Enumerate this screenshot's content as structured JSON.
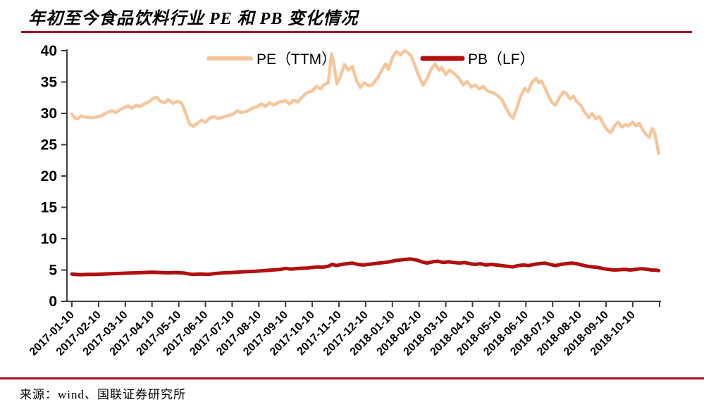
{
  "page": {
    "title": "年初至今食品饮料行业 PE 和 PB 变化情况",
    "source": "来源：wind、国联证券研究所"
  },
  "colors": {
    "accent_rule": "#A80E28",
    "axis": "#3F3F3F",
    "pe_line": "#F6C69B",
    "pb_line": "#B20F0F",
    "text": "#000000"
  },
  "chart_data": {
    "type": "line",
    "title": "年初至今食品饮料行业 PE 和 PB 变化情况",
    "grid": false,
    "legend_position": "top-center",
    "ylim": [
      0,
      40
    ],
    "y_ticks": [
      0,
      5,
      10,
      15,
      20,
      25,
      30,
      35,
      40
    ],
    "x_unit": "months since 2017-01-10",
    "x_range": [
      0,
      22.1
    ],
    "x_tick_labels": [
      "2017-01-10",
      "2017-02-10",
      "2017-03-10",
      "2017-04-10",
      "2017-05-10",
      "2017-06-10",
      "2017-07-10",
      "2017-08-10",
      "2017-09-10",
      "2017-10-10",
      "2017-11-10",
      "2017-12-10",
      "2018-01-10",
      "2018-02-10",
      "2018-03-10",
      "2018-04-10",
      "2018-05-10",
      "2018-06-10",
      "2018-07-10",
      "2018-08-10",
      "2018-09-10",
      "2018-10-10"
    ],
    "series": [
      {
        "id": "pe",
        "name": "PE（TTM）",
        "color": "#F6C69B",
        "width": 4.5,
        "points": [
          [
            0.0,
            29.9
          ],
          [
            0.1,
            29.3
          ],
          [
            0.2,
            29.1
          ],
          [
            0.35,
            29.6
          ],
          [
            0.5,
            29.4
          ],
          [
            0.7,
            29.3
          ],
          [
            0.9,
            29.4
          ],
          [
            1.1,
            29.6
          ],
          [
            1.3,
            30.1
          ],
          [
            1.5,
            30.4
          ],
          [
            1.65,
            30.1
          ],
          [
            1.8,
            30.6
          ],
          [
            1.95,
            30.9
          ],
          [
            2.1,
            31.2
          ],
          [
            2.25,
            30.8
          ],
          [
            2.4,
            31.3
          ],
          [
            2.55,
            31.1
          ],
          [
            2.75,
            31.6
          ],
          [
            2.9,
            31.9
          ],
          [
            3.05,
            32.4
          ],
          [
            3.18,
            32.6
          ],
          [
            3.32,
            31.9
          ],
          [
            3.48,
            31.7
          ],
          [
            3.62,
            32.2
          ],
          [
            3.78,
            31.6
          ],
          [
            3.95,
            31.9
          ],
          [
            4.1,
            31.7
          ],
          [
            4.25,
            30.2
          ],
          [
            4.4,
            28.3
          ],
          [
            4.55,
            27.9
          ],
          [
            4.7,
            28.4
          ],
          [
            4.85,
            28.9
          ],
          [
            5.0,
            28.6
          ],
          [
            5.15,
            29.2
          ],
          [
            5.3,
            29.5
          ],
          [
            5.45,
            29.2
          ],
          [
            5.6,
            29.3
          ],
          [
            5.8,
            29.6
          ],
          [
            6.0,
            29.8
          ],
          [
            6.2,
            30.4
          ],
          [
            6.35,
            30.1
          ],
          [
            6.55,
            30.3
          ],
          [
            6.75,
            30.8
          ],
          [
            6.95,
            31.1
          ],
          [
            7.1,
            31.5
          ],
          [
            7.25,
            31.1
          ],
          [
            7.4,
            31.7
          ],
          [
            7.55,
            31.3
          ],
          [
            7.75,
            31.8
          ],
          [
            8.0,
            32.0
          ],
          [
            8.15,
            31.5
          ],
          [
            8.3,
            32.1
          ],
          [
            8.45,
            31.8
          ],
          [
            8.6,
            32.5
          ],
          [
            8.8,
            33.3
          ],
          [
            9.0,
            33.6
          ],
          [
            9.15,
            34.3
          ],
          [
            9.3,
            33.9
          ],
          [
            9.45,
            34.6
          ],
          [
            9.6,
            34.9
          ],
          [
            9.72,
            39.5
          ],
          [
            9.8,
            38.2
          ],
          [
            9.92,
            34.7
          ],
          [
            10.05,
            35.8
          ],
          [
            10.2,
            37.8
          ],
          [
            10.35,
            36.9
          ],
          [
            10.5,
            37.5
          ],
          [
            10.65,
            35.3
          ],
          [
            10.8,
            34.1
          ],
          [
            10.95,
            34.9
          ],
          [
            11.1,
            34.4
          ],
          [
            11.25,
            34.6
          ],
          [
            11.45,
            35.7
          ],
          [
            11.65,
            37.2
          ],
          [
            11.75,
            37.9
          ],
          [
            11.85,
            37.0
          ],
          [
            12.0,
            38.9
          ],
          [
            12.15,
            39.9
          ],
          [
            12.3,
            39.3
          ],
          [
            12.45,
            40.0
          ],
          [
            12.55,
            39.8
          ],
          [
            12.7,
            39.2
          ],
          [
            12.85,
            37.6
          ],
          [
            13.0,
            35.8
          ],
          [
            13.15,
            34.5
          ],
          [
            13.3,
            35.6
          ],
          [
            13.45,
            37.0
          ],
          [
            13.6,
            37.9
          ],
          [
            13.75,
            36.9
          ],
          [
            13.85,
            37.3
          ],
          [
            14.0,
            36.2
          ],
          [
            14.15,
            36.9
          ],
          [
            14.3,
            36.4
          ],
          [
            14.5,
            35.6
          ],
          [
            14.65,
            34.5
          ],
          [
            14.8,
            35.1
          ],
          [
            14.95,
            34.2
          ],
          [
            15.1,
            34.5
          ],
          [
            15.25,
            33.9
          ],
          [
            15.4,
            34.3
          ],
          [
            15.55,
            33.6
          ],
          [
            15.75,
            33.3
          ],
          [
            15.95,
            32.8
          ],
          [
            16.1,
            32.2
          ],
          [
            16.25,
            30.9
          ],
          [
            16.4,
            29.7
          ],
          [
            16.52,
            29.2
          ],
          [
            16.65,
            30.7
          ],
          [
            16.8,
            32.7
          ],
          [
            16.95,
            34.0
          ],
          [
            17.08,
            33.5
          ],
          [
            17.22,
            34.9
          ],
          [
            17.38,
            35.6
          ],
          [
            17.48,
            34.9
          ],
          [
            17.58,
            35.2
          ],
          [
            17.72,
            34.0
          ],
          [
            17.86,
            32.6
          ],
          [
            18.0,
            31.6
          ],
          [
            18.1,
            31.3
          ],
          [
            18.25,
            32.5
          ],
          [
            18.4,
            33.4
          ],
          [
            18.52,
            33.2
          ],
          [
            18.65,
            32.3
          ],
          [
            18.78,
            32.7
          ],
          [
            18.92,
            31.8
          ],
          [
            19.05,
            31.3
          ],
          [
            19.2,
            30.2
          ],
          [
            19.35,
            29.3
          ],
          [
            19.48,
            30.0
          ],
          [
            19.62,
            29.1
          ],
          [
            19.75,
            29.5
          ],
          [
            19.9,
            28.3
          ],
          [
            20.05,
            27.3
          ],
          [
            20.18,
            26.9
          ],
          [
            20.32,
            28.0
          ],
          [
            20.45,
            28.6
          ],
          [
            20.6,
            27.8
          ],
          [
            20.72,
            28.2
          ],
          [
            20.85,
            28.0
          ],
          [
            21.0,
            28.6
          ],
          [
            21.12,
            28.0
          ],
          [
            21.25,
            28.4
          ],
          [
            21.38,
            27.3
          ],
          [
            21.5,
            26.6
          ],
          [
            21.62,
            26.2
          ],
          [
            21.72,
            27.6
          ],
          [
            21.82,
            26.9
          ],
          [
            21.9,
            25.2
          ],
          [
            21.97,
            23.6
          ]
        ]
      },
      {
        "id": "pb",
        "name": "PB（LF）",
        "color": "#B20F0F",
        "width": 5,
        "points": [
          [
            0.0,
            4.35
          ],
          [
            0.3,
            4.25
          ],
          [
            0.6,
            4.3
          ],
          [
            0.9,
            4.3
          ],
          [
            1.2,
            4.35
          ],
          [
            1.5,
            4.4
          ],
          [
            1.8,
            4.45
          ],
          [
            2.1,
            4.5
          ],
          [
            2.4,
            4.55
          ],
          [
            2.7,
            4.6
          ],
          [
            3.0,
            4.65
          ],
          [
            3.3,
            4.6
          ],
          [
            3.6,
            4.55
          ],
          [
            3.9,
            4.6
          ],
          [
            4.2,
            4.5
          ],
          [
            4.5,
            4.3
          ],
          [
            4.8,
            4.35
          ],
          [
            5.1,
            4.3
          ],
          [
            5.4,
            4.45
          ],
          [
            5.7,
            4.55
          ],
          [
            6.0,
            4.6
          ],
          [
            6.3,
            4.7
          ],
          [
            6.6,
            4.75
          ],
          [
            6.9,
            4.8
          ],
          [
            7.2,
            4.9
          ],
          [
            7.5,
            5.0
          ],
          [
            7.8,
            5.1
          ],
          [
            8.0,
            5.25
          ],
          [
            8.2,
            5.15
          ],
          [
            8.5,
            5.25
          ],
          [
            8.8,
            5.3
          ],
          [
            9.0,
            5.4
          ],
          [
            9.2,
            5.5
          ],
          [
            9.4,
            5.45
          ],
          [
            9.6,
            5.6
          ],
          [
            9.75,
            5.9
          ],
          [
            9.9,
            5.7
          ],
          [
            10.1,
            5.9
          ],
          [
            10.3,
            6.0
          ],
          [
            10.5,
            6.1
          ],
          [
            10.7,
            5.9
          ],
          [
            10.9,
            5.8
          ],
          [
            11.1,
            5.9
          ],
          [
            11.3,
            6.0
          ],
          [
            11.5,
            6.1
          ],
          [
            11.7,
            6.2
          ],
          [
            11.9,
            6.3
          ],
          [
            12.1,
            6.5
          ],
          [
            12.3,
            6.6
          ],
          [
            12.5,
            6.7
          ],
          [
            12.7,
            6.75
          ],
          [
            12.9,
            6.6
          ],
          [
            13.1,
            6.3
          ],
          [
            13.3,
            6.1
          ],
          [
            13.5,
            6.3
          ],
          [
            13.7,
            6.4
          ],
          [
            13.9,
            6.2
          ],
          [
            14.1,
            6.3
          ],
          [
            14.3,
            6.2
          ],
          [
            14.5,
            6.1
          ],
          [
            14.7,
            6.2
          ],
          [
            14.9,
            6.0
          ],
          [
            15.1,
            5.9
          ],
          [
            15.3,
            6.0
          ],
          [
            15.5,
            5.8
          ],
          [
            15.7,
            5.9
          ],
          [
            15.9,
            5.8
          ],
          [
            16.1,
            5.7
          ],
          [
            16.3,
            5.6
          ],
          [
            16.5,
            5.5
          ],
          [
            16.7,
            5.7
          ],
          [
            16.9,
            5.8
          ],
          [
            17.1,
            5.7
          ],
          [
            17.3,
            5.9
          ],
          [
            17.5,
            6.0
          ],
          [
            17.7,
            6.1
          ],
          [
            17.9,
            5.9
          ],
          [
            18.1,
            5.7
          ],
          [
            18.3,
            5.9
          ],
          [
            18.5,
            6.0
          ],
          [
            18.7,
            6.1
          ],
          [
            18.9,
            6.0
          ],
          [
            19.1,
            5.8
          ],
          [
            19.3,
            5.6
          ],
          [
            19.5,
            5.5
          ],
          [
            19.7,
            5.4
          ],
          [
            19.9,
            5.2
          ],
          [
            20.1,
            5.1
          ],
          [
            20.3,
            5.0
          ],
          [
            20.5,
            5.05
          ],
          [
            20.7,
            5.1
          ],
          [
            20.9,
            5.0
          ],
          [
            21.1,
            5.1
          ],
          [
            21.3,
            5.2
          ],
          [
            21.5,
            5.15
          ],
          [
            21.7,
            5.0
          ],
          [
            21.9,
            4.95
          ],
          [
            21.97,
            4.9
          ]
        ]
      }
    ]
  }
}
